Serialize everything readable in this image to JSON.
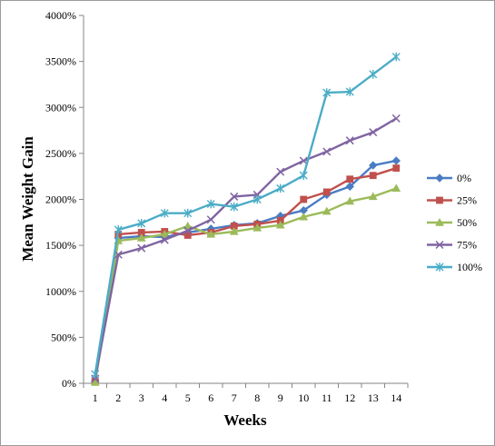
{
  "chart_data": {
    "type": "line",
    "title": "",
    "xlabel": "Weeks",
    "ylabel": "Mean Weight Gain",
    "categories": [
      "1",
      "2",
      "3",
      "4",
      "5",
      "6",
      "7",
      "8",
      "9",
      "10",
      "11",
      "12",
      "13",
      "14"
    ],
    "ylim": [
      0,
      4000
    ],
    "yticks": [
      0,
      500,
      1000,
      1500,
      2000,
      2500,
      3000,
      3500,
      4000
    ],
    "ytick_labels": [
      "0%",
      "500%",
      "1000%",
      "1500%",
      "2000%",
      "2500%",
      "3000%",
      "3500%",
      "4000%"
    ],
    "grid": false,
    "legend_position": "right",
    "series": [
      {
        "name": "0%",
        "color": "#4a7cc4",
        "marker": "diamond",
        "values": [
          30,
          1580,
          1600,
          1590,
          1640,
          1680,
          1720,
          1740,
          1820,
          1880,
          2050,
          2140,
          2370,
          2420
        ]
      },
      {
        "name": "25%",
        "color": "#c0504d",
        "marker": "square",
        "values": [
          20,
          1620,
          1640,
          1650,
          1610,
          1640,
          1710,
          1730,
          1770,
          2000,
          2080,
          2220,
          2260,
          2340
        ]
      },
      {
        "name": "50%",
        "color": "#9bbb59",
        "marker": "triangle",
        "values": [
          10,
          1550,
          1580,
          1620,
          1710,
          1620,
          1650,
          1690,
          1720,
          1810,
          1870,
          1980,
          2030,
          2120
        ]
      },
      {
        "name": "75%",
        "color": "#8064a2",
        "marker": "x",
        "values": [
          50,
          1400,
          1470,
          1560,
          1660,
          1780,
          2030,
          2050,
          2300,
          2420,
          2520,
          2640,
          2730,
          2880
        ]
      },
      {
        "name": "100%",
        "color": "#4bacc6",
        "marker": "star",
        "values": [
          100,
          1670,
          1740,
          1850,
          1850,
          1950,
          1920,
          2000,
          2120,
          2260,
          3160,
          3170,
          3360,
          3550
        ]
      }
    ]
  }
}
